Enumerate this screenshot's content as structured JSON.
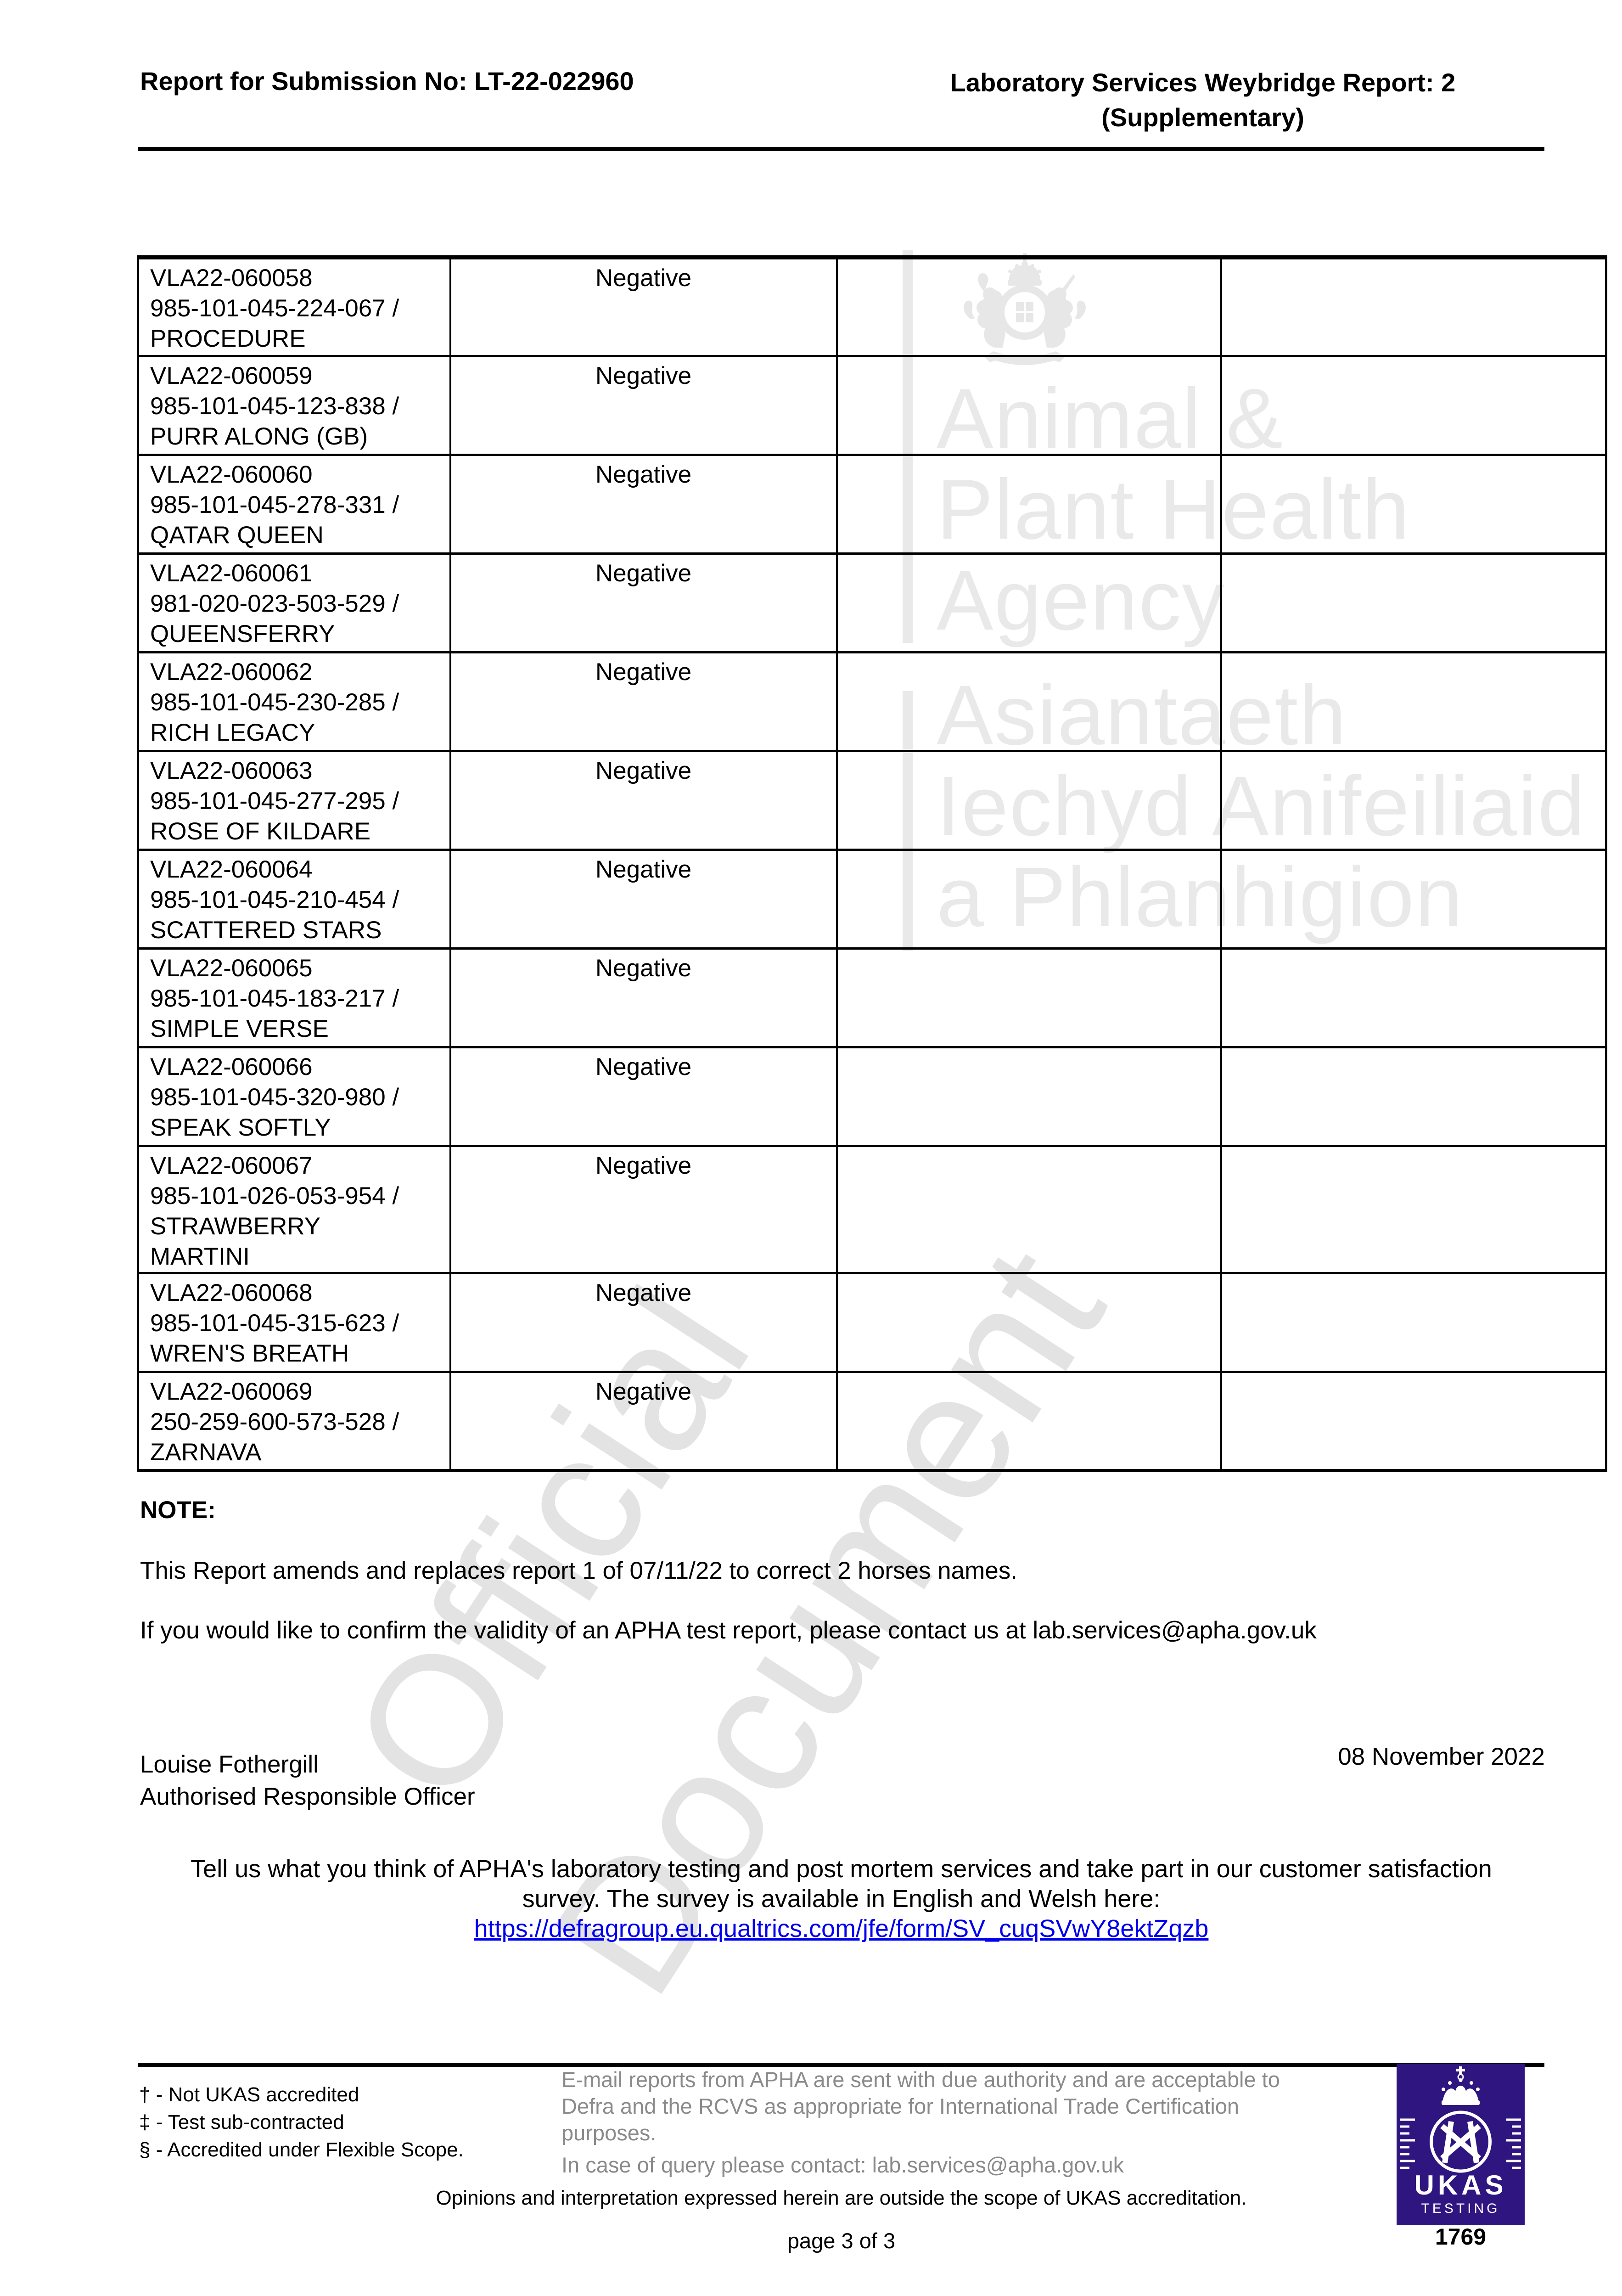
{
  "header": {
    "left_title": "Report for Submission No: LT-22-022960",
    "right_title_line1": "Laboratory Services Weybridge Report: 2",
    "right_title_line2": "(Supplementary)"
  },
  "table": {
    "rows": [
      {
        "sample_lines": [
          "VLA22-060058",
          "985-101-045-224-067 /",
          "PROCEDURE"
        ],
        "result": "Negative"
      },
      {
        "sample_lines": [
          "VLA22-060059",
          "985-101-045-123-838 /",
          "PURR ALONG (GB)"
        ],
        "result": "Negative"
      },
      {
        "sample_lines": [
          "VLA22-060060",
          "985-101-045-278-331 /",
          "QATAR QUEEN"
        ],
        "result": "Negative"
      },
      {
        "sample_lines": [
          "VLA22-060061",
          "981-020-023-503-529 /",
          "QUEENSFERRY"
        ],
        "result": "Negative"
      },
      {
        "sample_lines": [
          "VLA22-060062",
          "985-101-045-230-285 /",
          "RICH LEGACY"
        ],
        "result": "Negative"
      },
      {
        "sample_lines": [
          "VLA22-060063",
          "985-101-045-277-295 /",
          "ROSE OF KILDARE"
        ],
        "result": "Negative"
      },
      {
        "sample_lines": [
          "VLA22-060064",
          "985-101-045-210-454 /",
          "SCATTERED STARS"
        ],
        "result": "Negative"
      },
      {
        "sample_lines": [
          "VLA22-060065",
          "985-101-045-183-217 /",
          "SIMPLE VERSE"
        ],
        "result": "Negative"
      },
      {
        "sample_lines": [
          "VLA22-060066",
          "985-101-045-320-980 /",
          "SPEAK SOFTLY"
        ],
        "result": "Negative"
      },
      {
        "sample_lines": [
          "VLA22-060067",
          "985-101-026-053-954 /",
          "STRAWBERRY",
          "MARTINI"
        ],
        "result": "Negative"
      },
      {
        "sample_lines": [
          "VLA22-060068",
          "985-101-045-315-623 /",
          "WREN'S BREATH"
        ],
        "result": "Negative"
      },
      {
        "sample_lines": [
          "VLA22-060069",
          "250-259-600-573-528 /",
          "ZARNAVA"
        ],
        "result": "Negative"
      }
    ]
  },
  "note": {
    "label": "NOTE:",
    "amend_paragraph": "This Report amends and replaces report 1 of 07/11/22 to correct 2 horses names.",
    "validity_paragraph": "If you would like to confirm the validity of an APHA test report, please contact us at lab.services@apha.gov.uk"
  },
  "signature": {
    "name": "Louise Fothergill",
    "role": "Authorised Responsible Officer",
    "date": "08 November 2022"
  },
  "survey": {
    "line1": "Tell us what you think of APHA's laboratory testing and post mortem services and take part in our customer satisfaction",
    "line2": "survey. The survey is available in English and Welsh here:",
    "link_text": "https://defragroup.eu.qualtrics.com/jfe/form/SV_cuqSVwY8ektZqzb",
    "link_url": "https://defragroup.eu.qualtrics.com/jfe/form/SV_cuqSVwY8ektZqzb",
    "link_color": "#0000EE"
  },
  "watermarks": {
    "diagonal_word1": "Official",
    "diagonal_word2": "Document",
    "apha_en_line1": "Animal &",
    "apha_en_line2": "Plant Health",
    "apha_en_line3": "Agency",
    "apha_cy_line1": "Asiantaeth",
    "apha_cy_line2": "Iechyd Anifeiliaid",
    "apha_cy_line3": "a Phlanhigion",
    "watermark_gray": "#e3e3e3",
    "apha_watermark_gray": "#e9e9e9"
  },
  "footer": {
    "accreditation_note1": "† - Not UKAS accredited",
    "accreditation_note2": "‡ - Test sub-contracted",
    "accreditation_note3": "§ - Accredited under Flexible Scope.",
    "email_line1": "E-mail reports from APHA are sent with due authority and are acceptable to",
    "email_line2": "Defra and the RCVS as appropriate for International Trade Certification",
    "email_line3": "purposes.",
    "query_line": "In case of query please contact: lab.services@apha.gov.uk",
    "opinions_line": "Opinions and interpretation expressed herein are outside the scope of UKAS accreditation.",
    "page_indicator": "page 3 of 3",
    "footer_gray": "#8a8a8a"
  },
  "ukas": {
    "name": "UKAS",
    "type": "TESTING",
    "number": "1769",
    "purple": "#2f1580"
  }
}
